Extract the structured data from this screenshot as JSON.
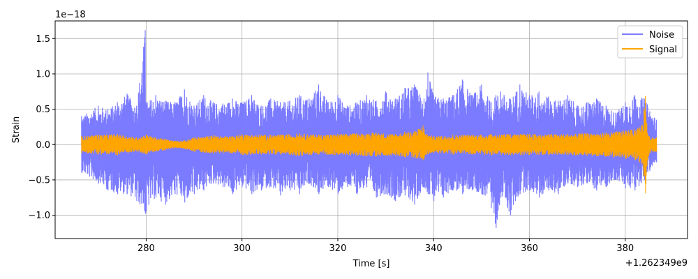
{
  "chart_data": {
    "type": "line",
    "xlabel": "Time [s]",
    "ylabel": "Strain",
    "y_multiplier_label": "1e−18",
    "x_offset_label": "+1.262349e9",
    "xlim": [
      261,
      393
    ],
    "ylim": [
      -1.33,
      1.75
    ],
    "x_ticks": [
      280,
      300,
      320,
      340,
      360,
      380
    ],
    "x_tick_labels": [
      "280",
      "300",
      "320",
      "340",
      "360",
      "380"
    ],
    "y_ticks": [
      -1.0,
      -0.5,
      0.0,
      0.5,
      1.0,
      1.5
    ],
    "y_tick_labels": [
      "−1.0",
      "−0.5",
      "0.0",
      "0.5",
      "1.0",
      "1.5"
    ],
    "grid": true,
    "legend_position": "top-right",
    "series": [
      {
        "name": "Noise",
        "color": "#7b7bff",
        "x_range": [
          266.5,
          386.5
        ],
        "envelope": {
          "x": [
            266.5,
            270,
            272,
            274,
            276,
            278,
            279.8,
            280,
            282,
            284,
            286,
            288,
            290,
            292,
            294,
            296,
            298,
            300,
            302,
            304,
            306,
            308,
            310,
            312,
            314,
            316,
            318,
            320,
            322,
            324,
            326,
            328,
            330,
            332,
            334,
            336,
            338,
            338.8,
            340,
            342,
            344,
            346,
            348,
            350,
            352,
            353,
            354,
            356,
            358,
            360,
            362,
            364,
            366,
            368,
            370,
            372,
            374,
            376,
            378,
            380,
            382,
            384,
            386.5
          ],
          "upper": [
            0.4,
            0.55,
            0.5,
            0.6,
            0.72,
            0.55,
            1.62,
            0.6,
            0.7,
            0.62,
            0.6,
            0.78,
            0.55,
            0.7,
            0.6,
            0.58,
            0.65,
            0.6,
            0.7,
            0.55,
            0.65,
            0.6,
            0.62,
            0.7,
            0.65,
            0.85,
            0.6,
            0.7,
            0.55,
            0.6,
            0.7,
            0.62,
            0.75,
            0.65,
            0.8,
            0.85,
            0.65,
            1.02,
            0.7,
            0.65,
            0.7,
            0.92,
            0.7,
            0.85,
            0.6,
            0.7,
            0.75,
            0.65,
            0.85,
            0.7,
            0.75,
            0.68,
            0.62,
            0.7,
            0.55,
            0.6,
            0.65,
            0.55,
            0.45,
            0.6,
            0.7,
            0.65,
            0.35
          ],
          "lower": [
            -0.4,
            -0.55,
            -0.65,
            -0.7,
            -0.7,
            -0.8,
            -0.98,
            -0.95,
            -0.75,
            -0.85,
            -0.7,
            -0.82,
            -0.7,
            -0.65,
            -0.55,
            -0.6,
            -0.7,
            -0.6,
            -0.7,
            -0.65,
            -0.6,
            -0.72,
            -0.65,
            -0.7,
            -0.55,
            -0.7,
            -0.6,
            -0.7,
            -0.6,
            -0.7,
            -0.6,
            -0.75,
            -0.7,
            -0.8,
            -0.72,
            -0.85,
            -0.6,
            -0.7,
            -0.8,
            -0.75,
            -0.65,
            -0.7,
            -0.65,
            -0.7,
            -0.9,
            -1.18,
            -0.75,
            -1.0,
            -0.7,
            -0.65,
            -0.75,
            -0.65,
            -0.7,
            -0.55,
            -0.6,
            -0.55,
            -0.65,
            -0.6,
            -0.5,
            -0.62,
            -0.65,
            -0.5,
            -0.25
          ]
        }
      },
      {
        "name": "Signal",
        "color": "#ffa500",
        "x_range": [
          266.5,
          386.5
        ],
        "envelope": {
          "x": [
            266.5,
            270,
            274,
            278,
            280,
            282,
            284,
            286,
            288,
            290,
            294,
            298,
            300,
            304,
            308,
            312,
            316,
            320,
            324,
            328,
            332,
            334,
            336,
            337.8,
            338.5,
            340,
            344,
            348,
            352,
            356,
            360,
            364,
            368,
            372,
            376,
            380,
            382,
            383.5,
            384.2,
            384.5,
            385,
            386.5
          ],
          "upper": [
            0.12,
            0.14,
            0.15,
            0.1,
            0.14,
            0.1,
            0.08,
            0.05,
            0.06,
            0.1,
            0.13,
            0.12,
            0.15,
            0.14,
            0.14,
            0.16,
            0.14,
            0.15,
            0.16,
            0.17,
            0.15,
            0.18,
            0.19,
            0.27,
            0.15,
            0.12,
            0.14,
            0.14,
            0.15,
            0.15,
            0.15,
            0.15,
            0.15,
            0.16,
            0.17,
            0.2,
            0.22,
            0.28,
            0.69,
            0.3,
            0.12,
            0.1
          ],
          "lower": [
            -0.12,
            -0.14,
            -0.15,
            -0.1,
            -0.14,
            -0.1,
            -0.08,
            -0.05,
            -0.06,
            -0.1,
            -0.13,
            -0.12,
            -0.15,
            -0.14,
            -0.14,
            -0.16,
            -0.14,
            -0.15,
            -0.16,
            -0.17,
            -0.15,
            -0.18,
            -0.19,
            -0.22,
            -0.15,
            -0.12,
            -0.14,
            -0.14,
            -0.15,
            -0.15,
            -0.15,
            -0.15,
            -0.15,
            -0.16,
            -0.17,
            -0.2,
            -0.22,
            -0.28,
            -0.69,
            -0.3,
            -0.12,
            -0.1
          ]
        }
      }
    ]
  }
}
